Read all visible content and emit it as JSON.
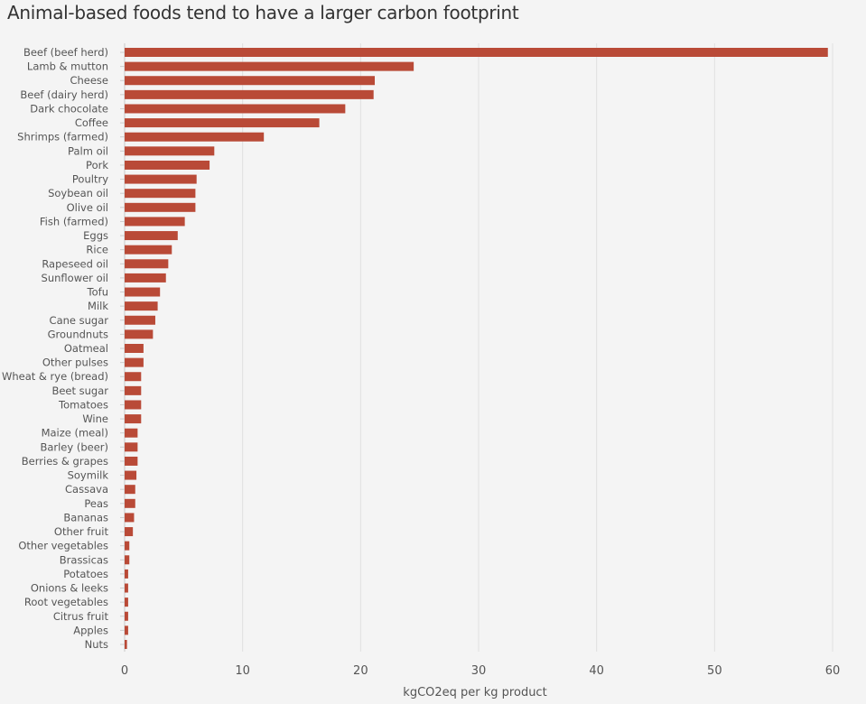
{
  "chart_data": {
    "type": "bar",
    "orientation": "horizontal",
    "title": "Animal-based foods tend to have a larger carbon footprint",
    "xlabel": "kgCO2eq per kg product",
    "ylabel": "",
    "xlim": [
      0,
      60
    ],
    "xticks": [
      "0",
      "10",
      "20",
      "30",
      "40",
      "50",
      "60"
    ],
    "grid": true,
    "bar_color": "#b94a37",
    "categories": [
      "Beef (beef herd)",
      "Lamb & mutton",
      "Cheese",
      "Beef (dairy herd)",
      "Dark chocolate",
      "Coffee",
      "Shrimps (farmed)",
      "Palm oil",
      "Pork",
      "Poultry",
      "Soybean oil",
      "Olive oil",
      "Fish (farmed)",
      "Eggs",
      "Rice",
      "Rapeseed oil",
      "Sunflower oil",
      "Tofu",
      "Milk",
      "Cane sugar",
      "Groundnuts",
      "Oatmeal",
      "Other pulses",
      "Wheat & rye (bread)",
      "Beet sugar",
      "Tomatoes",
      "Wine",
      "Maize (meal)",
      "Barley (beer)",
      "Berries & grapes",
      "Soymilk",
      "Cassava",
      "Peas",
      "Bananas",
      "Other fruit",
      "Other vegetables",
      "Brassicas",
      "Potatoes",
      "Onions & leeks",
      "Root vegetables",
      "Citrus fruit",
      "Apples",
      "Nuts"
    ],
    "values": [
      59.6,
      24.5,
      21.2,
      21.1,
      18.7,
      16.5,
      11.8,
      7.6,
      7.2,
      6.1,
      6.0,
      6.0,
      5.1,
      4.5,
      4.0,
      3.7,
      3.5,
      3.0,
      2.8,
      2.6,
      2.4,
      1.6,
      1.6,
      1.4,
      1.4,
      1.4,
      1.4,
      1.1,
      1.1,
      1.1,
      1.0,
      0.9,
      0.9,
      0.8,
      0.7,
      0.4,
      0.4,
      0.3,
      0.3,
      0.3,
      0.3,
      0.3,
      0.2
    ]
  }
}
